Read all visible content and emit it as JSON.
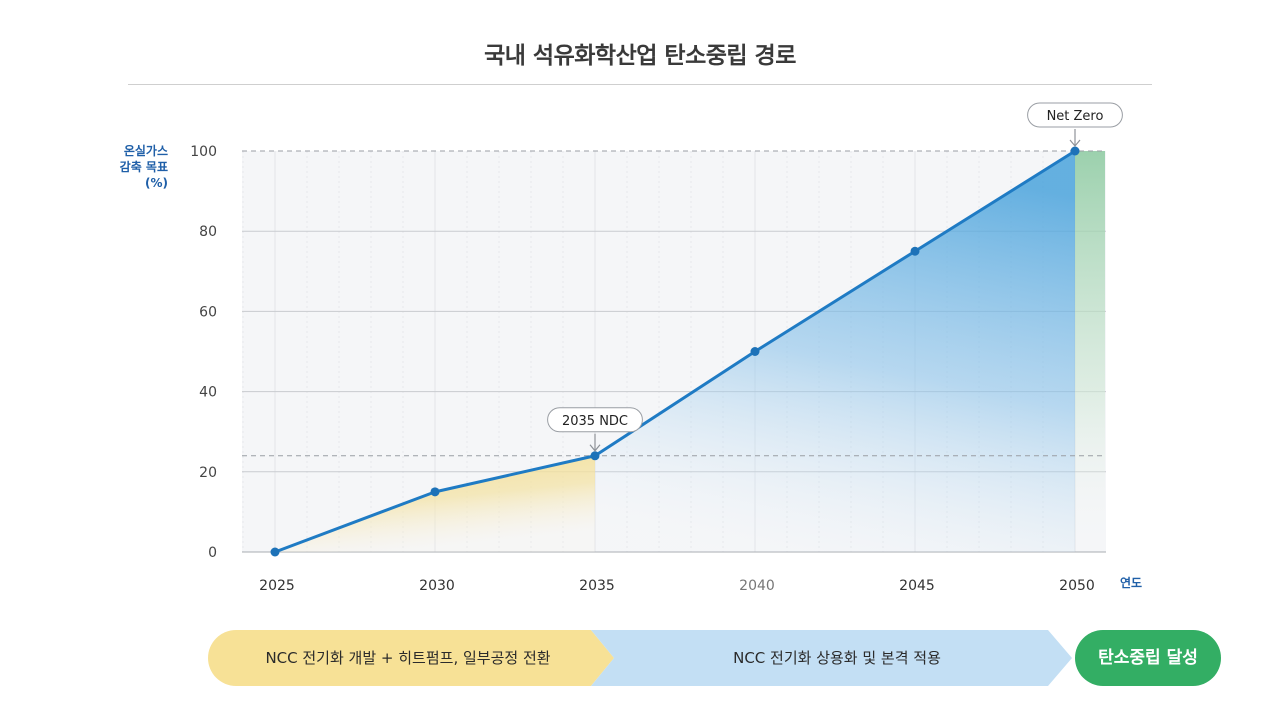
{
  "header": {
    "title": "국내 석유화학산업 탄소중립 경로"
  },
  "chart_data": {
    "type": "line",
    "title": "국내 석유화학산업 탄소중립 경로",
    "ylabel": "온실가스 감축 목표 (%)",
    "ylabel_lines": [
      "온실가스",
      "감축 목표",
      "(%)"
    ],
    "xlabel": "연도",
    "x": [
      2025,
      2030,
      2035,
      2040,
      2045,
      2050
    ],
    "xlim": [
      2024,
      2051
    ],
    "ylim": [
      0,
      100
    ],
    "yticks": [
      0,
      20,
      40,
      60,
      80,
      100
    ],
    "xtick_labels": [
      "2025",
      "2030",
      "2035",
      "2040",
      "2045",
      "2050"
    ],
    "ytick_labels": [
      "0",
      "20",
      "40",
      "60",
      "80",
      "100"
    ],
    "grid": true,
    "series": [
      {
        "name": "온실가스 감축 목표",
        "values": [
          0,
          15,
          24,
          50,
          75,
          100
        ]
      }
    ],
    "reference_lines": [
      {
        "axis": "y",
        "value": 100,
        "style": "dashed"
      },
      {
        "axis": "y",
        "value": 24,
        "style": "dashed"
      }
    ],
    "annotations": [
      {
        "text": "2035 NDC",
        "x": 2035,
        "y": 24
      },
      {
        "text": "Net Zero",
        "x": 2050,
        "y": 100
      }
    ],
    "shaded_regions": [
      {
        "from": 2025,
        "to": 2035,
        "color": "#f3df8f"
      },
      {
        "from": 2035,
        "to": 2050,
        "color": "#4aa3dc"
      },
      {
        "from": 2050,
        "to": 2051,
        "color": "#8ccaa0"
      }
    ]
  },
  "phases": [
    {
      "label": "NCC 전기화 개발 + 히트펌프, 일부공정 전환",
      "color": "#f7e196"
    },
    {
      "label": "NCC 전기화 상용화 및 본격 적용",
      "color": "#c3dff4"
    },
    {
      "label": "탄소중립 달성",
      "color": "#33ae64"
    }
  ],
  "colors": {
    "line": "#1f7bc4",
    "axis_title": "#1f5fa8",
    "plot_bg": "#f5f6f8"
  }
}
